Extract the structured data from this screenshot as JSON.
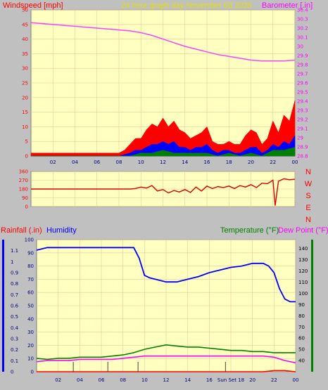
{
  "header": {
    "left_label": "Windspeed [mph]",
    "center_label": "24 hour graph day   November 03 2025",
    "right_label": "Barometer [.in]"
  },
  "bottom_header": {
    "rain_label": "Rainfall (.in)",
    "humidity_label": "Humidity",
    "temperature_label": "Temperature (°F)",
    "dewpoint_label": "Dew Point (°F)"
  },
  "colors": {
    "background": "#c0c0c0",
    "plot_bg": "#ffffc0",
    "grid": "#e8c8a0",
    "gust": "#ff0000",
    "wind": "#0000ff",
    "wind_low": "#008000",
    "barometer": "#ff40ff",
    "direction": "#dd0000",
    "humidity": "#0000ff",
    "temperature": "#008000",
    "dewpoint": "#ff00ff",
    "rain": "#ff0000",
    "rain_axis": "#0000ff",
    "temp_axis": "#008000"
  },
  "chart_data": [
    {
      "type": "area",
      "name": "wind-barometer",
      "x_ticks": [
        "02",
        "04",
        "06",
        "08",
        "10",
        "12",
        "14",
        "16",
        "18",
        "20",
        "22",
        "00"
      ],
      "left_ylim": [
        0,
        50
      ],
      "left_ticks": [
        "0",
        "5",
        "10",
        "15",
        "20",
        "25",
        "30",
        "35",
        "40",
        "45",
        "50"
      ],
      "right_ylim": [
        28.8,
        30.4
      ],
      "right_ticks": [
        "28.8",
        "28.9",
        "29",
        "29.1",
        "29.2",
        "29.3",
        "29.4",
        "29.5",
        "29.6",
        "29.7",
        "29.8",
        "29.9",
        "30",
        "30.1",
        "30.2",
        "30.3",
        "30.4"
      ],
      "barometer": {
        "x": [
          0,
          1,
          2,
          3,
          4,
          5,
          6,
          7,
          8,
          9,
          10,
          11,
          12,
          13,
          14,
          15,
          16,
          17,
          18,
          19,
          20,
          21,
          22,
          23,
          24
        ],
        "values": [
          30.26,
          30.25,
          30.24,
          30.23,
          30.22,
          30.21,
          30.2,
          30.19,
          30.18,
          30.17,
          30.15,
          30.12,
          30.08,
          30.04,
          30.0,
          29.97,
          29.94,
          29.91,
          29.89,
          29.87,
          29.85,
          29.84,
          29.84,
          29.84,
          29.85
        ]
      },
      "gust": {
        "x": [
          0,
          2,
          4,
          6,
          8,
          8.5,
          9,
          9.5,
          10,
          10.5,
          11,
          11.5,
          12,
          12.5,
          13,
          13.5,
          14,
          14.5,
          15,
          15.5,
          16,
          16.5,
          17,
          17.5,
          18,
          18.5,
          19,
          19.5,
          20,
          20.5,
          21,
          21.5,
          22,
          22.5,
          23,
          23.5,
          24
        ],
        "values": [
          1,
          1,
          1,
          1,
          1,
          2,
          4,
          6,
          6,
          9,
          11,
          10,
          13,
          10,
          12,
          9,
          8,
          6,
          7,
          8,
          10,
          5,
          4,
          4,
          5,
          4,
          4,
          7,
          9,
          8,
          4,
          6,
          12,
          8,
          14,
          12,
          19
        ]
      },
      "wind": {
        "x": [
          0,
          2,
          4,
          6,
          8,
          8.5,
          9,
          9.5,
          10,
          10.5,
          11,
          11.5,
          12,
          12.5,
          13,
          13.5,
          14,
          14.5,
          15,
          15.5,
          16,
          16.5,
          17,
          17.5,
          18,
          18.5,
          19,
          19.5,
          20,
          20.5,
          21,
          21.5,
          22,
          22.5,
          23,
          23.5,
          24
        ],
        "values": [
          0,
          0,
          0,
          0,
          0,
          0.5,
          1,
          2,
          2,
          3,
          4,
          4,
          5,
          4,
          5,
          3,
          3,
          2,
          3,
          3,
          4,
          2,
          1,
          2,
          2,
          1,
          1,
          2,
          3,
          3,
          1,
          2,
          4,
          3,
          5,
          4,
          7
        ]
      },
      "wind_low": {
        "x": [
          0,
          8,
          9,
          10,
          11,
          12,
          13,
          14,
          15,
          16,
          17,
          18,
          19,
          20,
          21,
          22,
          23,
          24
        ],
        "values": [
          0,
          0,
          0,
          1,
          1,
          2,
          1,
          1,
          1,
          1,
          0,
          1,
          0,
          1,
          0,
          2,
          2,
          3
        ]
      }
    },
    {
      "type": "scatter",
      "name": "wind-direction",
      "left_ylim": [
        0,
        360
      ],
      "left_ticks": [
        "0",
        "90",
        "180",
        "270",
        "360"
      ],
      "compass": [
        "N",
        "W",
        "S",
        "E",
        "N"
      ],
      "x": [
        0,
        2,
        4,
        6,
        8,
        9,
        9.5,
        10,
        10.5,
        11,
        11.5,
        12,
        12.5,
        13,
        13.5,
        14,
        14.5,
        15,
        15.5,
        16,
        16.5,
        17,
        17.5,
        18,
        18.5,
        19,
        19.5,
        20,
        20.5,
        21,
        21.5,
        22,
        22.2,
        22.5,
        23,
        23.5,
        24
      ],
      "values": [
        180,
        180,
        180,
        180,
        180,
        180,
        185,
        200,
        190,
        215,
        160,
        175,
        140,
        165,
        150,
        175,
        145,
        200,
        160,
        210,
        185,
        205,
        195,
        210,
        185,
        215,
        200,
        225,
        195,
        240,
        235,
        270,
        10,
        260,
        285,
        275,
        280
      ]
    },
    {
      "type": "line",
      "name": "temp-humidity",
      "x_ticks": [
        "02",
        "04",
        "06",
        "08",
        "10",
        "12",
        "14",
        "16",
        "Sun Set 18",
        "20",
        "22",
        "00"
      ],
      "rain_ylim": [
        0,
        1.2
      ],
      "rain_ticks": [
        "0",
        "0.1",
        "0.2",
        "0.3",
        "0.4",
        "0.5",
        "0.6",
        "0.7",
        "0.8",
        "0.9",
        "1",
        "1.1"
      ],
      "humidity_ylim": [
        0,
        100
      ],
      "humidity_ticks": [
        "0",
        "10",
        "20",
        "30",
        "40",
        "50",
        "60",
        "70",
        "80",
        "90",
        "100"
      ],
      "temp_ylim": [
        30,
        148
      ],
      "temp_ticks": [
        "40",
        "50",
        "60",
        "70",
        "80",
        "90",
        "100",
        "110",
        "120",
        "130",
        "140"
      ],
      "humidity": {
        "x": [
          0,
          1,
          2,
          3,
          4,
          5,
          6,
          7,
          8,
          9,
          9.5,
          10,
          10.5,
          11,
          12,
          13,
          14,
          15,
          16,
          17,
          18,
          19,
          20,
          21,
          21.5,
          22,
          22.5,
          23,
          23.5,
          24
        ],
        "values": [
          92,
          94,
          94,
          94,
          94,
          94,
          94,
          94,
          94,
          94,
          86,
          73,
          71,
          70,
          68,
          68,
          70,
          72,
          75,
          77,
          79,
          80,
          82,
          82,
          80,
          75,
          63,
          55,
          53,
          53
        ]
      },
      "temperature": {
        "x": [
          0,
          1,
          2,
          3,
          4,
          5,
          6,
          7,
          8,
          9,
          10,
          11,
          12,
          13,
          14,
          15,
          16,
          17,
          18,
          19,
          20,
          21,
          22,
          23,
          24
        ],
        "values": [
          42,
          41,
          42,
          42,
          43,
          43,
          43,
          44,
          45,
          47,
          50,
          52,
          54,
          53,
          52,
          52,
          51,
          50,
          49,
          49,
          48,
          48,
          47,
          47,
          47
        ]
      },
      "dewpoint": {
        "x": [
          0,
          1,
          2,
          3,
          4,
          5,
          6,
          7,
          8,
          9,
          10,
          11,
          12,
          13,
          14,
          15,
          16,
          17,
          18,
          19,
          20,
          21,
          22,
          23,
          24
        ],
        "values": [
          39,
          40,
          40,
          40,
          41,
          41,
          41,
          41,
          42,
          43,
          44,
          44,
          44,
          44,
          44,
          44,
          44,
          44,
          44,
          44,
          44,
          44,
          43,
          40,
          38
        ]
      },
      "rain": {
        "x": [
          0,
          1,
          2,
          3,
          4,
          5,
          6,
          7,
          8,
          9,
          10,
          11,
          12,
          13,
          14,
          15,
          16,
          17,
          18,
          19,
          20,
          21,
          22,
          23,
          24
        ],
        "values": [
          0,
          0,
          0,
          0,
          0,
          0,
          0,
          0,
          0,
          0,
          0,
          0,
          0,
          0,
          0,
          0,
          0,
          0,
          0,
          0,
          0,
          0,
          0.01,
          0.01,
          0
        ]
      },
      "markers_x": [
        3.4,
        6.6,
        9.4,
        17.5
      ]
    }
  ]
}
